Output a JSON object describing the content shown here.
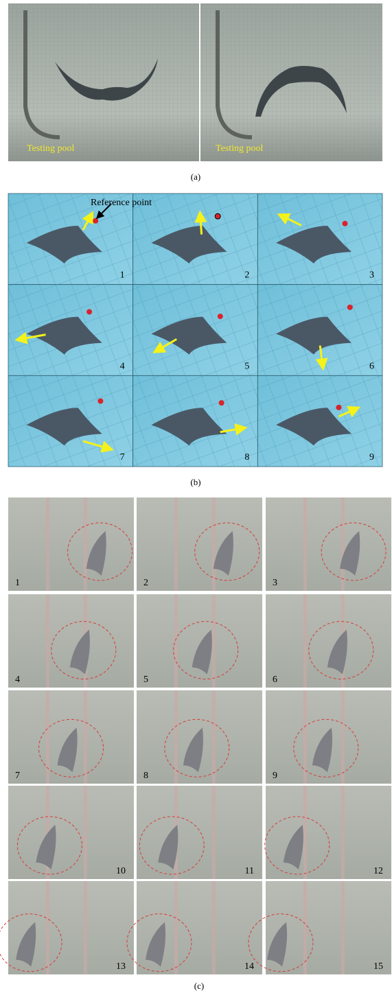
{
  "panel_a": {
    "images": [
      {
        "label": "Testing pool"
      },
      {
        "label": "Testing pool"
      }
    ],
    "caption": "(a)"
  },
  "panel_b": {
    "annotation": "Reference point",
    "frames": [
      "1",
      "2",
      "3",
      "4",
      "5",
      "6",
      "7",
      "8",
      "9"
    ],
    "caption": "(b)"
  },
  "panel_c": {
    "frames": [
      "1",
      "2",
      "3",
      "4",
      "5",
      "6",
      "7",
      "8",
      "9",
      "10",
      "11",
      "12",
      "13",
      "14",
      "15"
    ],
    "caption": "(c)"
  }
}
